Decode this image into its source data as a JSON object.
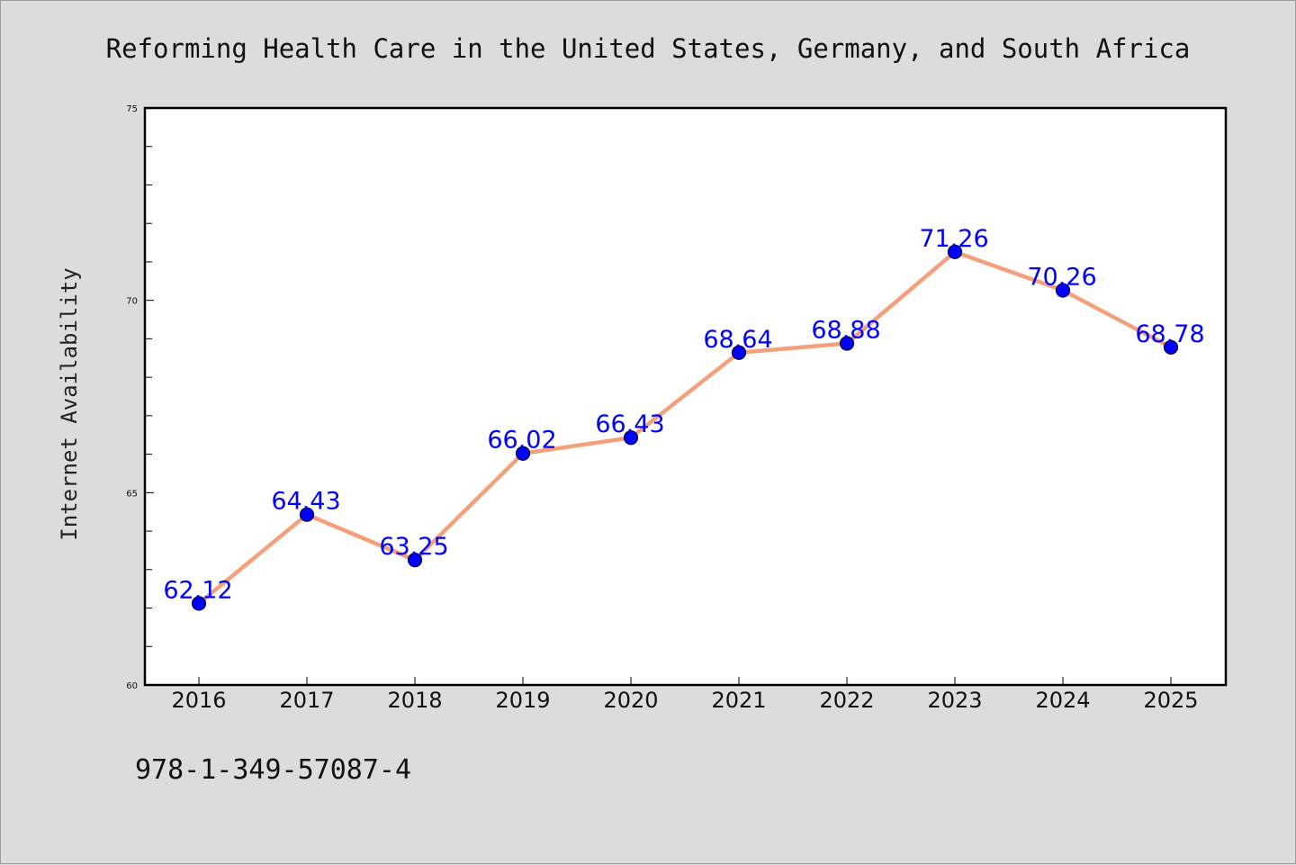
{
  "chart_data": {
    "type": "line",
    "title": "Reforming Health Care in the United States, Germany, and South Africa",
    "xlabel": "",
    "ylabel": "Internet Availability",
    "categories": [
      "2016",
      "2017",
      "2018",
      "2019",
      "2020",
      "2021",
      "2022",
      "2023",
      "2024",
      "2025"
    ],
    "series": [
      {
        "values": [
          62.12,
          64.43,
          63.25,
          66.02,
          66.43,
          68.64,
          68.88,
          71.26,
          70.26,
          68.78
        ],
        "data_labels": [
          "62.12",
          "64.43",
          "63.25",
          "66.02",
          "66.43",
          "68.64",
          "68.88",
          "71.26",
          "70.26",
          "68.78"
        ]
      }
    ],
    "ylim": [
      60,
      75
    ],
    "yticks": [
      "60",
      "65",
      "70",
      "75"
    ],
    "grid": false,
    "legend": "none",
    "colors": {
      "line": "#f4a07a",
      "marker": "#0000ff",
      "marker_edge": "#000033",
      "data_label": "#0000ff",
      "background": "#dcdcdc",
      "plot_background": "#ffffff"
    }
  },
  "footer": {
    "isbn": "978-1-349-57087-4"
  }
}
